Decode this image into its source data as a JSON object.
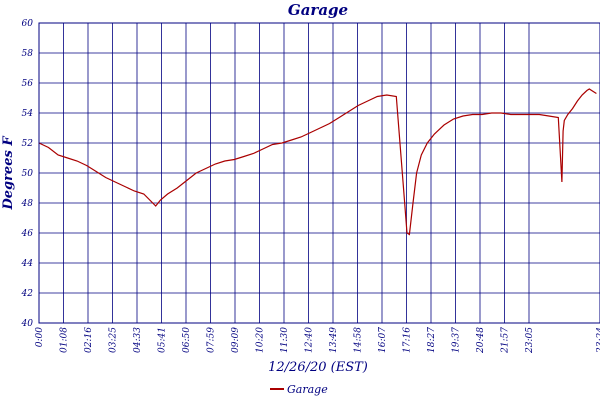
{
  "chart_data": {
    "type": "line",
    "title": "Garage",
    "xlabel": "12/26/20 (EST)",
    "ylabel": "Degrees F",
    "ylim": [
      40,
      60
    ],
    "y_ticks": [
      "40",
      "42",
      "44",
      "46",
      "48",
      "50",
      "52",
      "54",
      "56",
      "58",
      "60"
    ],
    "x_ticks": [
      "0:00",
      "01:08",
      "02:16",
      "03:25",
      "04:33",
      "05:41",
      "06:50",
      "07:59",
      "09:09",
      "10:20",
      "11:30",
      "12:40",
      "13:49",
      "14:58",
      "16:07",
      "17:16",
      "18:27",
      "19:37",
      "20:48",
      "21:57",
      "23:05",
      "23:24"
    ],
    "grid": true,
    "legend_position": "bottom-center",
    "series": [
      {
        "name": "Garage",
        "color": "#aa0000",
        "x_hours": [
          0,
          0.4,
          0.8,
          1.2,
          1.6,
          2.0,
          2.4,
          2.8,
          3.2,
          3.6,
          4.0,
          4.4,
          4.9,
          5.1,
          5.4,
          5.8,
          6.2,
          6.6,
          7.0,
          7.4,
          7.8,
          8.2,
          8.6,
          9.0,
          9.4,
          9.8,
          10.2,
          10.6,
          11.0,
          11.4,
          11.8,
          12.2,
          12.6,
          13.0,
          13.4,
          13.8,
          14.2,
          14.6,
          15.0,
          15.3,
          15.45,
          15.55,
          15.7,
          15.85,
          16.05,
          16.3,
          16.6,
          17.0,
          17.4,
          17.8,
          18.2,
          18.6,
          19.0,
          19.4,
          19.8,
          20.2,
          20.6,
          21.0,
          21.4,
          21.8,
          21.95,
          22.0,
          22.05,
          22.2,
          22.4,
          22.6,
          22.8,
          23.0,
          23.1,
          23.3,
          23.4
        ],
        "values": [
          52.0,
          51.7,
          51.2,
          51.0,
          50.8,
          50.5,
          50.1,
          49.7,
          49.4,
          49.1,
          48.8,
          48.6,
          47.8,
          48.2,
          48.6,
          49.0,
          49.5,
          50.0,
          50.3,
          50.6,
          50.8,
          50.9,
          51.1,
          51.3,
          51.6,
          51.9,
          52.0,
          52.2,
          52.4,
          52.7,
          53.0,
          53.3,
          53.7,
          54.1,
          54.5,
          54.8,
          55.1,
          55.2,
          55.1,
          49.0,
          46.0,
          45.9,
          48.0,
          50.0,
          51.2,
          52.0,
          52.6,
          53.2,
          53.6,
          53.8,
          53.9,
          53.9,
          54.0,
          54.0,
          53.9,
          53.9,
          53.9,
          53.9,
          53.8,
          53.7,
          49.4,
          52.8,
          53.5,
          53.9,
          54.3,
          54.8,
          55.2,
          55.5,
          55.6,
          55.4,
          55.3
        ]
      }
    ]
  }
}
